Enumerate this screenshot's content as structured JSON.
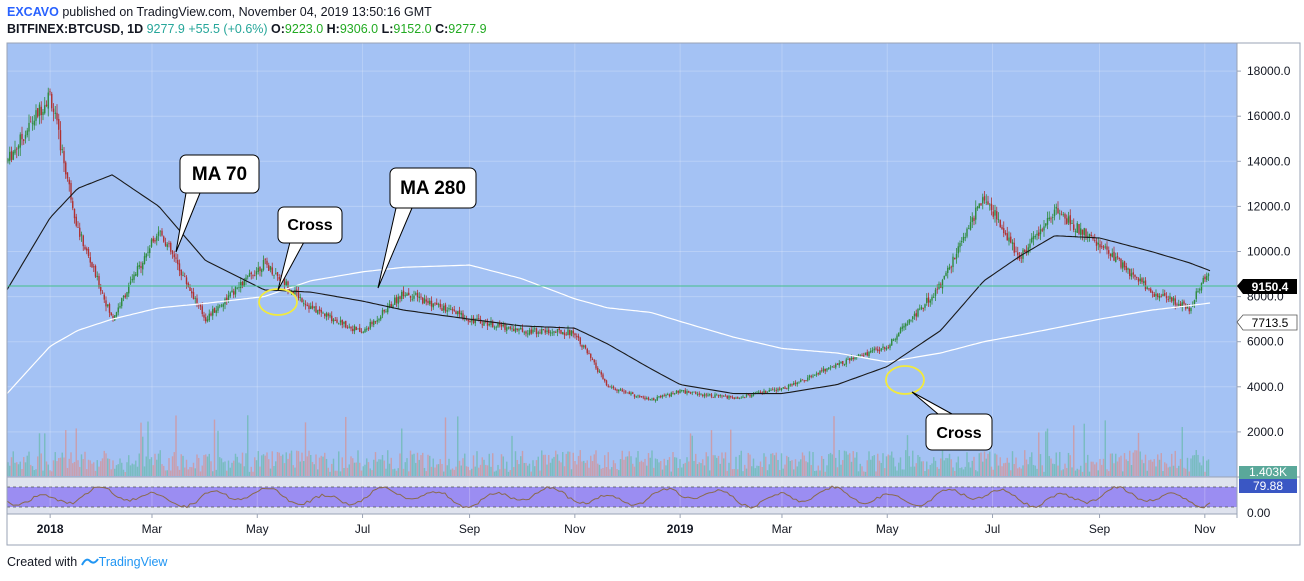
{
  "header": {
    "author": "EXCAVO",
    "published": "published on TradingView.com, November 04, 2019 13:50:16 GMT",
    "symbol": "BITFINEX:BTCUSD, 1D",
    "last": "9277.9",
    "change": "+55.5 (+0.6%)",
    "o_label": "O:",
    "o_value": "9223.0",
    "h_label": "H:",
    "h_value": "9306.0",
    "l_label": "L:",
    "l_value": "9152.0",
    "c_label": "C:",
    "c_value": "9277.9"
  },
  "footer": {
    "created": "Created with",
    "brand": "TradingView"
  },
  "colors": {
    "background": "#a4c2f4",
    "up": "#2e8b3c",
    "down": "#b03030",
    "ma70": "#1a1a1a",
    "ma280": "#ffffff",
    "price_line": "#43c08a",
    "rsi_bg": "#9b8df2",
    "rsi_line": "#8a6a4c",
    "cross_circle": "#f2ea3c"
  },
  "annotations": {
    "ma70": "MA 70",
    "ma280": "MA 280",
    "cross1": "Cross",
    "cross2": "Cross"
  },
  "price_badges": {
    "last": "9150.4",
    "ma280": "7713.5",
    "volume": "1.403K",
    "rsi": "79.88"
  },
  "chart_data": {
    "type": "candlestick",
    "x_tick_labels": [
      "2018",
      "Mar",
      "May",
      "Jul",
      "Sep",
      "Nov",
      "2019",
      "Mar",
      "May",
      "Jul",
      "Sep",
      "Nov"
    ],
    "y_tick_labels": [
      "18000.0",
      "16000.0",
      "14000.0",
      "12000.0",
      "10000.0",
      "8000.0",
      "6000.0",
      "4000.0",
      "2000.0"
    ],
    "ylim": [
      0,
      19500
    ],
    "rsi_tick_labels": [
      "0.00"
    ],
    "x_dates": [
      "2017-12-07",
      "2018-01-01",
      "2018-01-17",
      "2018-02-06",
      "2018-03-05",
      "2018-04-01",
      "2018-05-05",
      "2018-06-01",
      "2018-07-01",
      "2018-07-25",
      "2018-09-01",
      "2018-10-01",
      "2018-11-01",
      "2018-11-20",
      "2018-12-15",
      "2019-01-01",
      "2019-02-01",
      "2019-03-01",
      "2019-04-02",
      "2019-05-01",
      "2019-06-01",
      "2019-06-26",
      "2019-07-17",
      "2019-08-06",
      "2019-09-01",
      "2019-10-01",
      "2019-10-23",
      "2019-11-04"
    ],
    "series": [
      {
        "name": "BTCUSD",
        "values": [
          14000,
          17000,
          11000,
          7000,
          11000,
          7000,
          9500,
          7500,
          6400,
          8200,
          7000,
          6500,
          6400,
          4000,
          3400,
          3800,
          3500,
          3900,
          5000,
          5800,
          8500,
          12500,
          9700,
          11800,
          10300,
          8200,
          7500,
          9278
        ]
      },
      {
        "name": "MA 70",
        "values": [
          8300,
          11500,
          12800,
          13400,
          12000,
          9600,
          8300,
          8200,
          7800,
          7400,
          7000,
          6700,
          6600,
          5900,
          4800,
          4100,
          3700,
          3700,
          4100,
          4900,
          6500,
          8700,
          9800,
          10700,
          10600,
          10000,
          9500,
          9150
        ]
      },
      {
        "name": "MA 280",
        "values": [
          3700,
          5800,
          6500,
          7000,
          7500,
          7700,
          8000,
          8700,
          9100,
          9300,
          9400,
          8800,
          7900,
          7500,
          7300,
          6900,
          6200,
          5700,
          5500,
          5100,
          5500,
          6000,
          6300,
          6600,
          7000,
          7400,
          7600,
          7714
        ]
      }
    ]
  }
}
